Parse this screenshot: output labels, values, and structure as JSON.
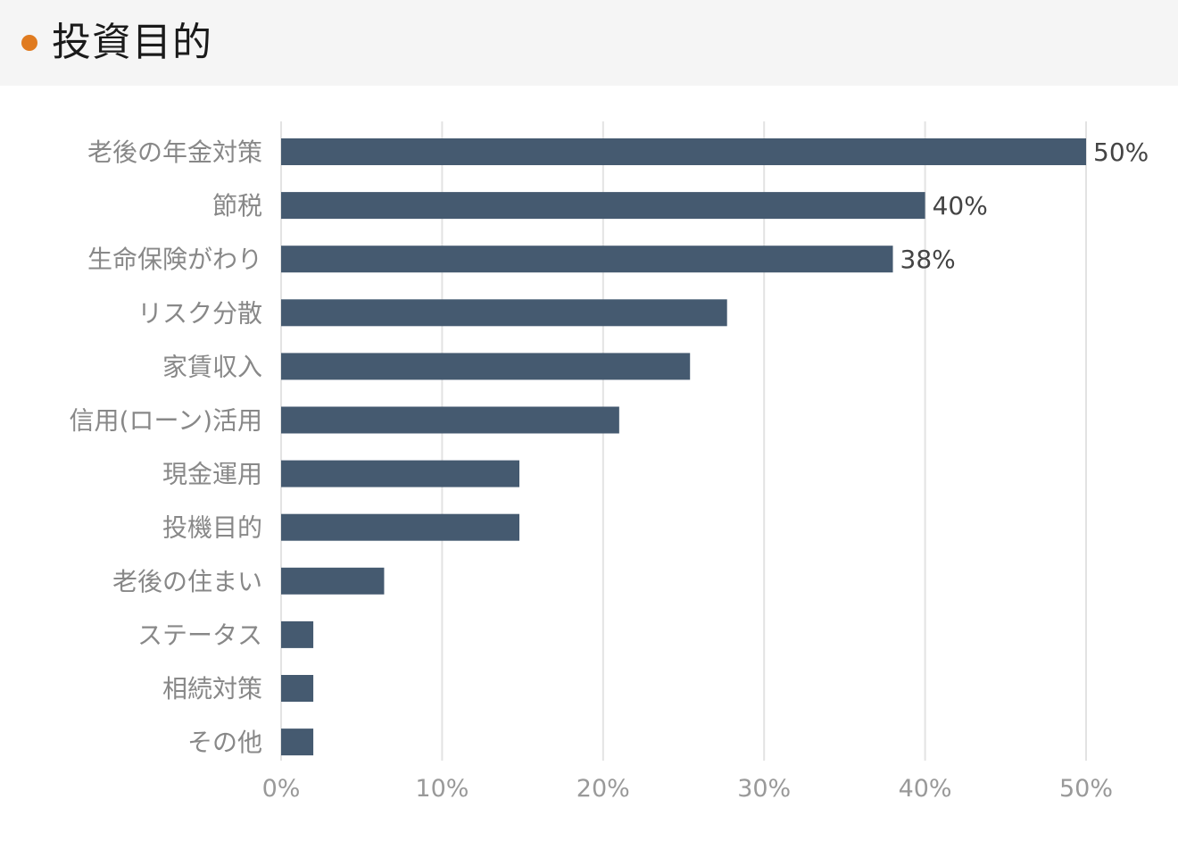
{
  "header": {
    "title": "投資目的",
    "dot_color": "#e07b20"
  },
  "chart_data": {
    "type": "bar",
    "orientation": "horizontal",
    "title": "投資目的",
    "xlabel": "",
    "ylabel": "",
    "categories": [
      "老後の年金対策",
      "節税",
      "生命保険がわり",
      "リスク分散",
      "家賃収入",
      "信用(ローン)活用",
      "現金運用",
      "投機目的",
      "老後の住まい",
      "ステータス",
      "相続対策",
      "その他"
    ],
    "values": [
      50,
      40,
      38,
      27.7,
      25.4,
      21,
      14.8,
      14.8,
      6.4,
      2,
      2,
      2
    ],
    "data_labels": [
      "50%",
      "40%",
      "38%",
      "",
      "",
      "",
      "",
      "",
      "",
      "",
      "",
      ""
    ],
    "xlim": [
      0,
      50
    ],
    "xticks": [
      0,
      10,
      20,
      30,
      40,
      50
    ],
    "xtick_labels": [
      "0%",
      "10%",
      "20%",
      "30%",
      "40%",
      "50%"
    ],
    "grid": true,
    "bar_color": "#455a70",
    "grid_color": "#e3e3e3"
  }
}
